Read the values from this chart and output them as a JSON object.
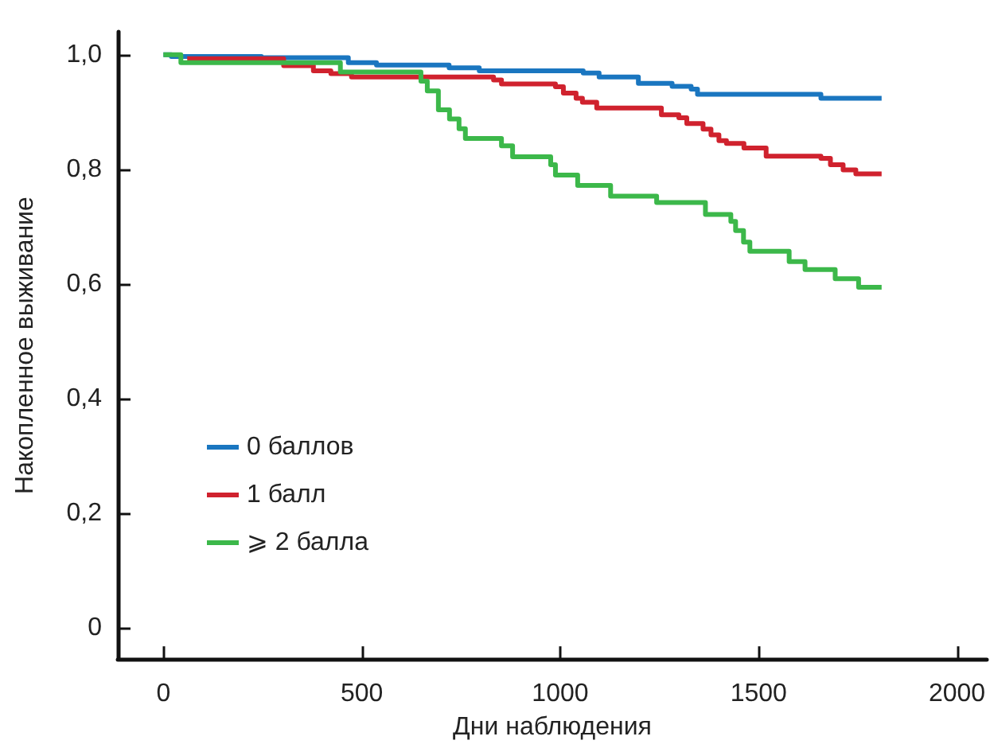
{
  "chart_data": {
    "type": "step",
    "xlabel": "Дни наблюдения",
    "ylabel": "Накопленное выживание",
    "xlim": [
      -115,
      2075
    ],
    "xticks": [
      0,
      500,
      1000,
      1500,
      2000
    ],
    "ylim": [
      -0.055,
      1.04
    ],
    "yticks": [
      0,
      {
        "value": 0.2,
        "label": "0,2"
      },
      {
        "value": 0.4,
        "label": "0,4"
      },
      {
        "value": 0.6,
        "label": "0,6"
      },
      {
        "value": 0.8,
        "label": "0,8"
      },
      {
        "value": 1,
        "label": "1,0"
      }
    ],
    "grid": false,
    "legend": "left",
    "series": [
      {
        "name": "0 баллов",
        "color": "#1a76c0",
        "x": [
          0,
          20,
          247,
          466,
          537,
          720,
          796,
          1058,
          1098,
          1197,
          1282,
          1330,
          1346,
          1657,
          1810
        ],
        "values": [
          1,
          0.997,
          0.995,
          0.986,
          0.982,
          0.977,
          0.972,
          0.968,
          0.961,
          0.95,
          0.945,
          0.94,
          0.931,
          0.924,
          0.924
        ]
      },
      {
        "name": "1 балл",
        "color": "#d0222e",
        "x": [
          60,
          303,
          378,
          422,
          474,
          832,
          852,
          988,
          1008,
          1040,
          1056,
          1092,
          1255,
          1299,
          1319,
          1360,
          1380,
          1400,
          1419,
          1463,
          1519,
          1657,
          1681,
          1713,
          1745,
          1810
        ],
        "values": [
          0.993,
          0.981,
          0.972,
          0.967,
          0.961,
          0.956,
          0.949,
          0.944,
          0.933,
          0.924,
          0.917,
          0.907,
          0.895,
          0.89,
          0.88,
          0.87,
          0.86,
          0.85,
          0.845,
          0.837,
          0.823,
          0.819,
          0.808,
          0.799,
          0.792,
          0.792
        ]
      },
      {
        "name": "⩾ 2 балла",
        "color": "#3cb84a",
        "x": [
          0,
          44,
          446,
          649,
          665,
          693,
          721,
          745,
          761,
          852,
          880,
          976,
          988,
          1044,
          1127,
          1243,
          1366,
          1430,
          1442,
          1462,
          1478,
          1577,
          1617,
          1693,
          1752,
          1810
        ],
        "values": [
          1,
          0.986,
          0.97,
          0.954,
          0.937,
          0.904,
          0.888,
          0.871,
          0.854,
          0.841,
          0.822,
          0.808,
          0.79,
          0.772,
          0.753,
          0.742,
          0.721,
          0.709,
          0.693,
          0.673,
          0.657,
          0.639,
          0.625,
          0.609,
          0.594,
          0.594
        ]
      }
    ]
  }
}
